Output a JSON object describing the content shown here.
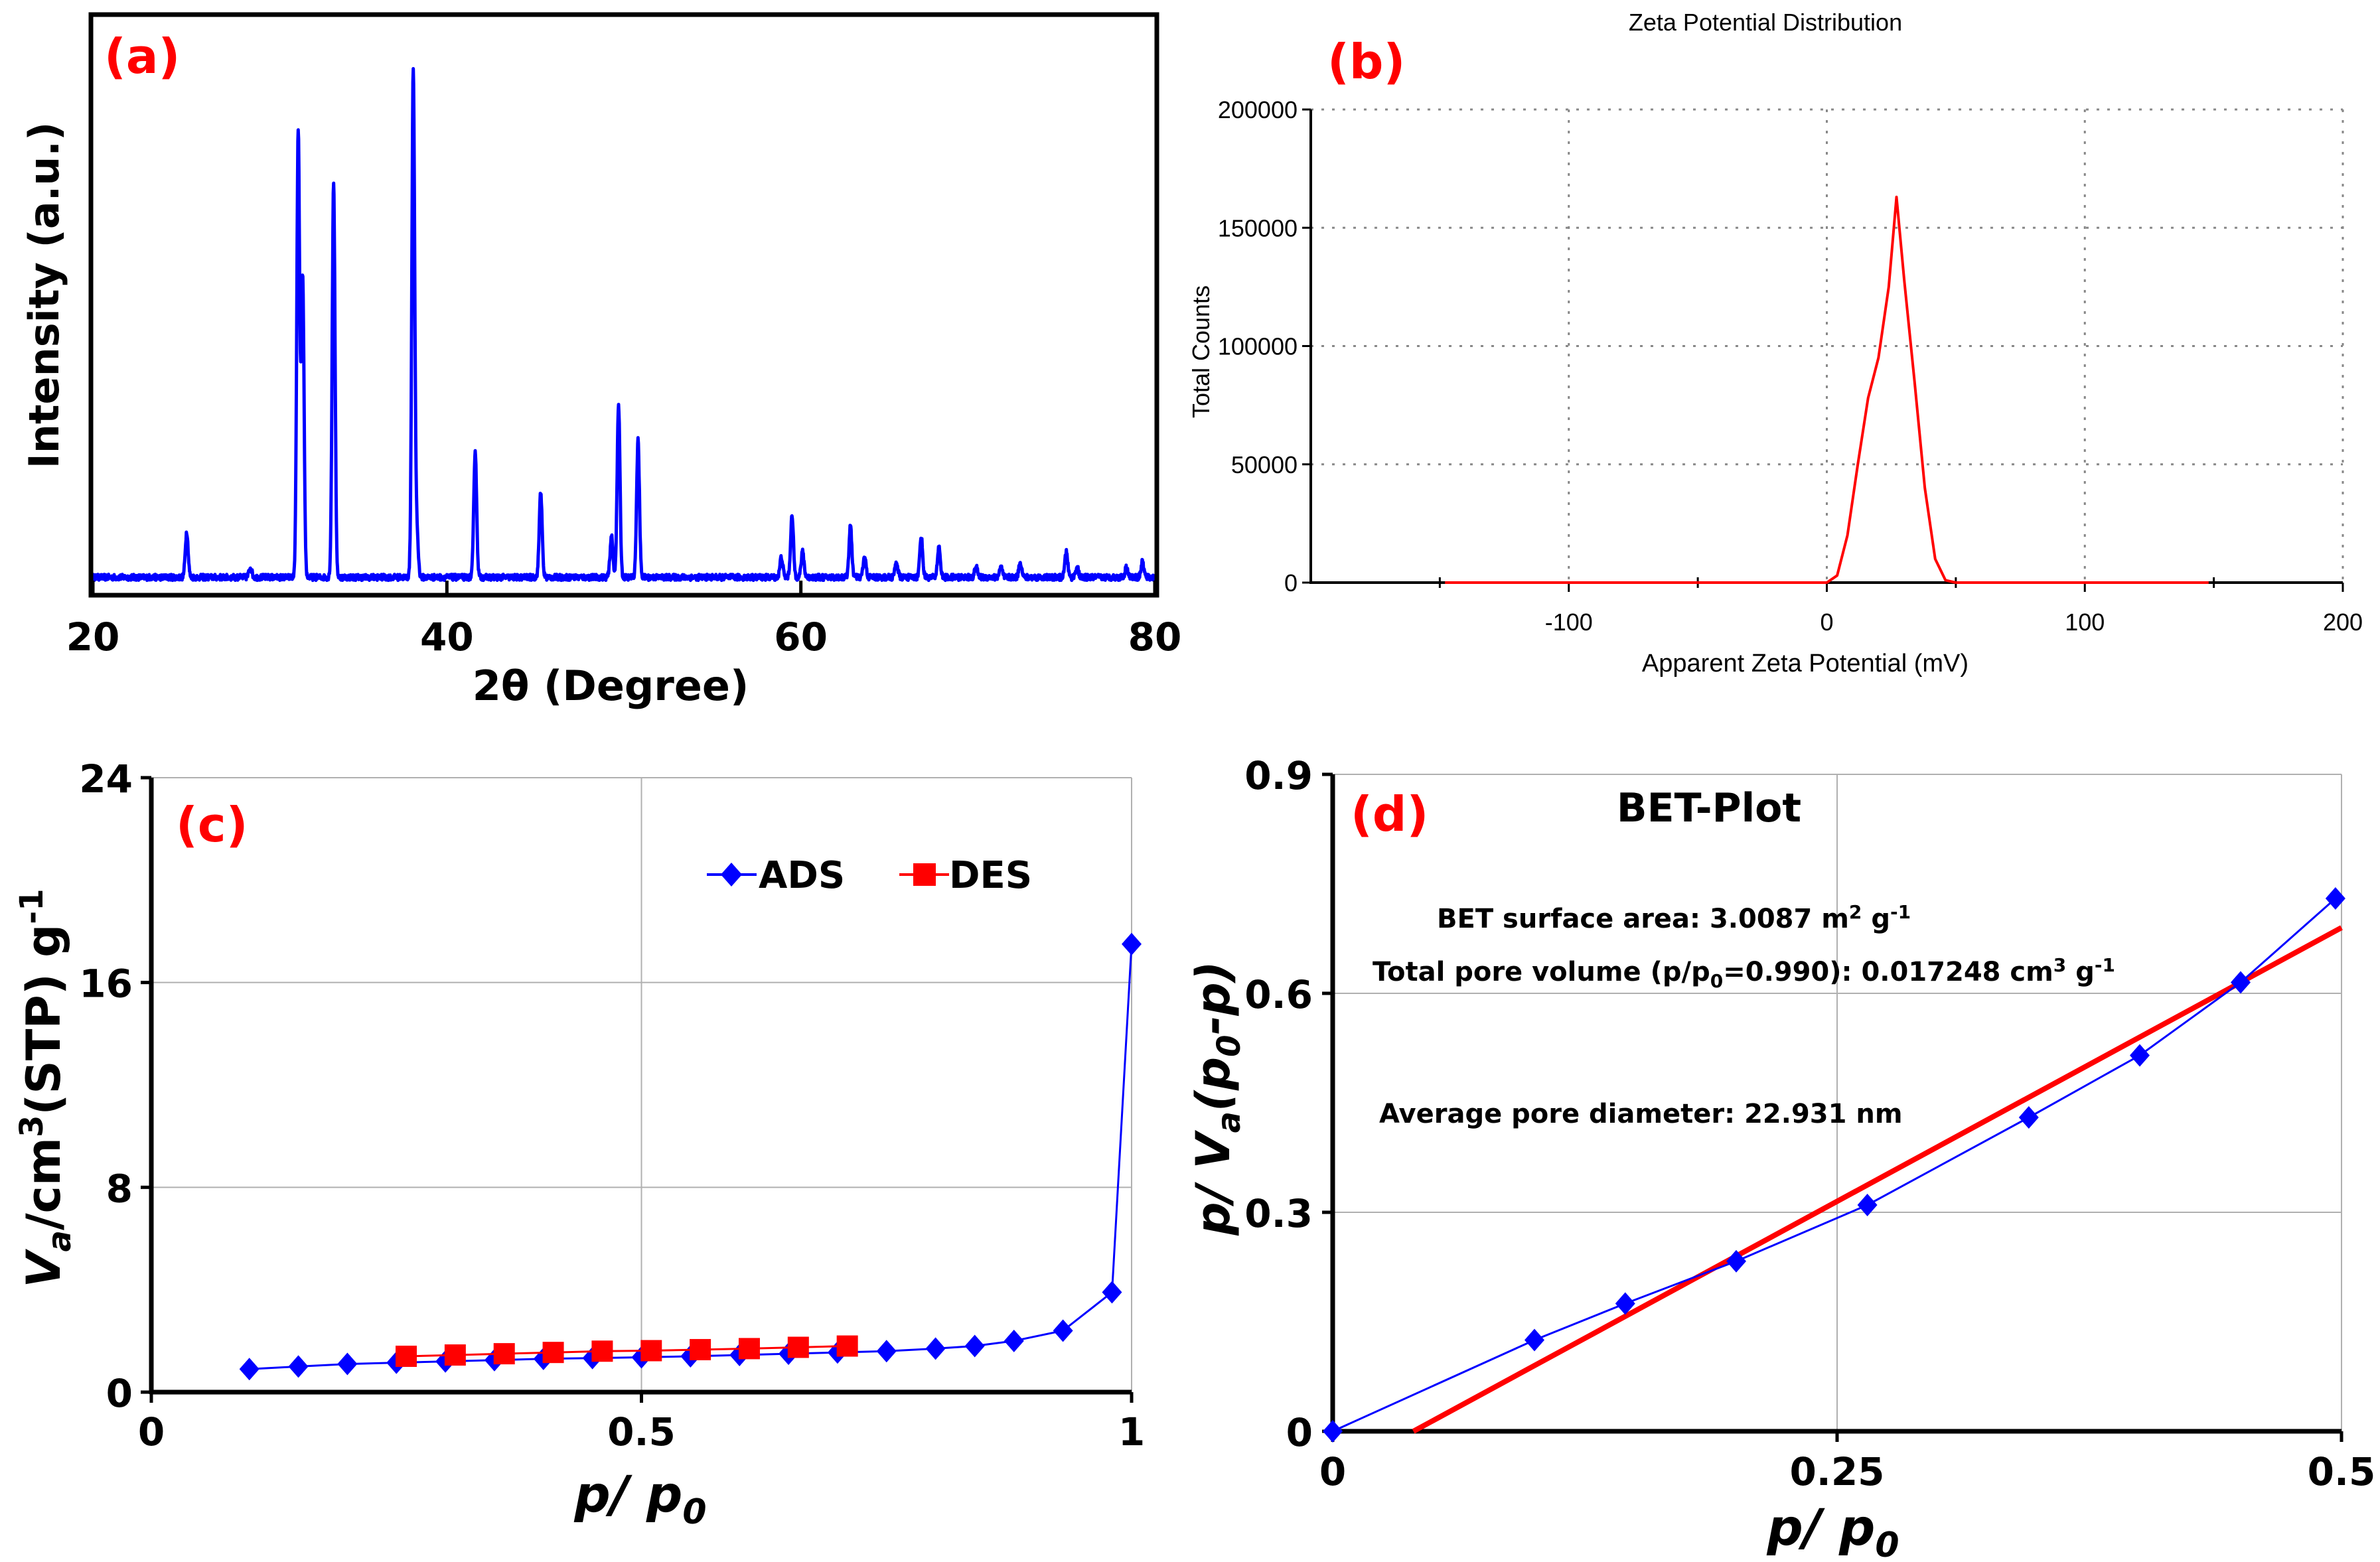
{
  "chart_data": [
    {
      "id": "a",
      "type": "line",
      "panel_label": "(a)",
      "xlabel": "2θ (Degree)",
      "ylabel": "Intensity (a.u.)",
      "xlim": [
        20,
        80
      ],
      "ylim": [
        0,
        1
      ],
      "x_ticks": [
        "20",
        "40",
        "60",
        "80"
      ],
      "x_tick_values": [
        20,
        40,
        60,
        80
      ],
      "grid": false,
      "baseline": 0.03,
      "peaks": [
        {
          "x": 25.3,
          "h": 0.09
        },
        {
          "x": 28.9,
          "h": 0.02
        },
        {
          "x": 31.6,
          "h": 0.88
        },
        {
          "x": 31.85,
          "h": 0.59
        },
        {
          "x": 33.6,
          "h": 0.78
        },
        {
          "x": 38.1,
          "h": 1.0
        },
        {
          "x": 38.3,
          "h": 0.09
        },
        {
          "x": 41.6,
          "h": 0.25
        },
        {
          "x": 45.3,
          "h": 0.17
        },
        {
          "x": 49.3,
          "h": 0.08
        },
        {
          "x": 49.7,
          "h": 0.34
        },
        {
          "x": 50.8,
          "h": 0.27
        },
        {
          "x": 58.9,
          "h": 0.04
        },
        {
          "x": 59.5,
          "h": 0.12
        },
        {
          "x": 60.1,
          "h": 0.05
        },
        {
          "x": 62.8,
          "h": 0.1
        },
        {
          "x": 63.6,
          "h": 0.04
        },
        {
          "x": 65.4,
          "h": 0.03
        },
        {
          "x": 66.8,
          "h": 0.08
        },
        {
          "x": 67.8,
          "h": 0.06
        },
        {
          "x": 69.9,
          "h": 0.02
        },
        {
          "x": 71.3,
          "h": 0.02
        },
        {
          "x": 72.4,
          "h": 0.03
        },
        {
          "x": 75.0,
          "h": 0.05
        },
        {
          "x": 75.6,
          "h": 0.02
        },
        {
          "x": 78.4,
          "h": 0.02
        },
        {
          "x": 79.3,
          "h": 0.03
        }
      ],
      "line_color": "#0000ff"
    },
    {
      "id": "b",
      "type": "line",
      "panel_label": "(b)",
      "title": "Zeta Potential Distribution",
      "xlabel": "Apparent Zeta Potential (mV)",
      "ylabel": "Total Counts",
      "xlim": [
        -200,
        200
      ],
      "ylim": [
        0,
        200000
      ],
      "x_ticks": [
        "-100",
        "0",
        "100",
        "200"
      ],
      "x_tick_values": [
        -100,
        0,
        100,
        200
      ],
      "y_ticks": [
        "0",
        "50000",
        "100000",
        "150000",
        "200000"
      ],
      "y_tick_values": [
        0,
        50000,
        100000,
        150000,
        200000
      ],
      "grid": true,
      "line_color": "#ff0000",
      "series": [
        {
          "x": [
            -148,
            0,
            4,
            8,
            12,
            16,
            20,
            24,
            27,
            30,
            34,
            38,
            42,
            46,
            50,
            148
          ],
          "y": [
            0,
            0,
            3000,
            20000,
            50000,
            78000,
            95000,
            125000,
            163000,
            128000,
            85000,
            40000,
            10000,
            1000,
            0,
            0
          ]
        }
      ]
    },
    {
      "id": "c",
      "type": "line",
      "panel_label": "(c)",
      "xlabel_main": "p/ p",
      "xlabel_sub": "0",
      "ylabel_parts": [
        "V",
        "a",
        "/cm",
        "3",
        "(STP) g",
        "-1"
      ],
      "xlim": [
        0,
        1
      ],
      "ylim": [
        0,
        24
      ],
      "x_ticks": [
        "0",
        "0.5",
        "1"
      ],
      "x_tick_values": [
        0,
        0.5,
        1
      ],
      "y_ticks": [
        "0",
        "8",
        "16",
        "24"
      ],
      "y_tick_values": [
        0,
        8,
        16,
        24
      ],
      "grid": true,
      "series": [
        {
          "name": "ADS",
          "color": "#0000ff",
          "marker": "diamond",
          "x": [
            0.1,
            0.15,
            0.2,
            0.25,
            0.3,
            0.35,
            0.4,
            0.45,
            0.5,
            0.55,
            0.6,
            0.65,
            0.7,
            0.75,
            0.8,
            0.84,
            0.88,
            0.93,
            0.98,
            1.0
          ],
          "y": [
            0.9,
            1.0,
            1.1,
            1.15,
            1.2,
            1.25,
            1.3,
            1.33,
            1.36,
            1.4,
            1.45,
            1.5,
            1.55,
            1.6,
            1.7,
            1.8,
            2.0,
            2.4,
            3.9,
            17.5
          ]
        },
        {
          "name": "DES",
          "color": "#ff0000",
          "marker": "square",
          "x": [
            0.26,
            0.31,
            0.36,
            0.41,
            0.46,
            0.51,
            0.56,
            0.61,
            0.66,
            0.71
          ],
          "y": [
            1.4,
            1.45,
            1.5,
            1.55,
            1.6,
            1.62,
            1.66,
            1.7,
            1.75,
            1.8
          ]
        }
      ],
      "legend_position": "top-right"
    },
    {
      "id": "d",
      "type": "scatter",
      "panel_label": "(d)",
      "title": "BET-Plot",
      "xlabel_main": "p/ p",
      "xlabel_sub": "0",
      "ylabel_parts": [
        "p/ V",
        "a",
        "(p",
        "0",
        "-p)"
      ],
      "xlim": [
        0,
        0.5
      ],
      "ylim": [
        0,
        0.9
      ],
      "x_ticks": [
        "0",
        "0.25",
        "0.5"
      ],
      "x_tick_values": [
        0,
        0.25,
        0.5
      ],
      "y_ticks": [
        "0",
        "0.3",
        "0.6",
        "0.9"
      ],
      "y_tick_values": [
        0,
        0.3,
        0.6,
        0.9
      ],
      "grid": true,
      "series": [
        {
          "color": "#0000ff",
          "marker": "diamond",
          "x": [
            0.0,
            0.1,
            0.145,
            0.2,
            0.265,
            0.345,
            0.4,
            0.45,
            0.497
          ],
          "y": [
            0.0,
            0.125,
            0.175,
            0.233,
            0.31,
            0.43,
            0.515,
            0.615,
            0.73
          ]
        }
      ],
      "fit_line": {
        "color": "#ff0000",
        "x": [
          0.04,
          0.5
        ],
        "y": [
          0.0,
          0.69
        ]
      },
      "annotations": {
        "surface_area": [
          "BET surface area: 3.0087 m",
          "2",
          " g",
          "-1"
        ],
        "pore_volume": [
          "Total pore volume (p/p",
          "0",
          "=0.990): 0.017248 cm",
          "3",
          " g",
          "-1"
        ],
        "pore_diameter": "Average pore diameter: 22.931 nm"
      }
    }
  ]
}
